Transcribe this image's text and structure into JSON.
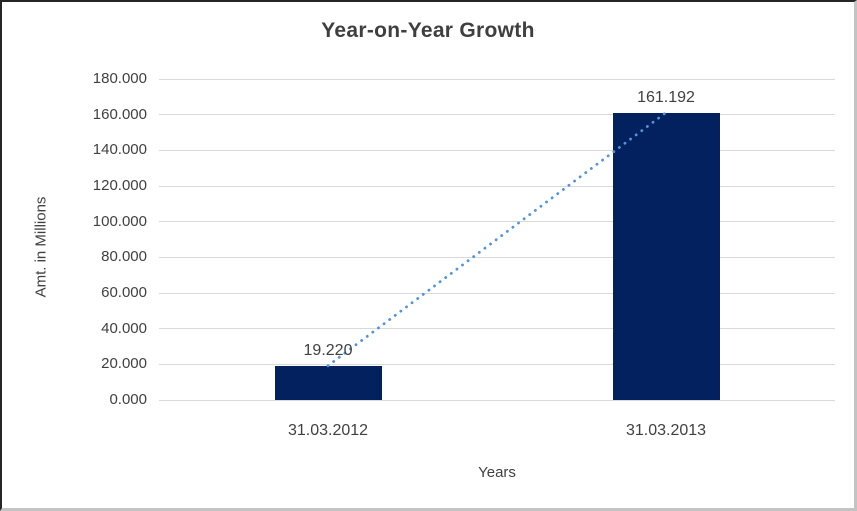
{
  "chart_data": {
    "type": "bar",
    "title": "Year-on-Year Growth",
    "xlabel": "Years",
    "ylabel": "Amt. in Millions",
    "categories": [
      "31.03.2012",
      "31.03.2013"
    ],
    "series": [
      {
        "name": "Amt. in Millions",
        "values": [
          19.22,
          161.192
        ]
      }
    ],
    "data_labels": [
      "19.220",
      "161.192"
    ],
    "ylim": [
      0,
      180
    ],
    "ytick_step": 20,
    "ytick_labels": [
      "180.000",
      "160.000",
      "140.000",
      "120.000",
      "100.000",
      "80.000",
      "60.000",
      "40.000",
      "20.000",
      "0.000"
    ],
    "grid": "horizontal",
    "legend": "none",
    "trendline": {
      "type": "linear",
      "style": "dotted"
    },
    "colors": {
      "bar": "#02215e",
      "trendline": "#5592d6",
      "gridline": "#d9d9d9",
      "title_text": "#3f3f3f",
      "tick_text": "#404040"
    }
  }
}
